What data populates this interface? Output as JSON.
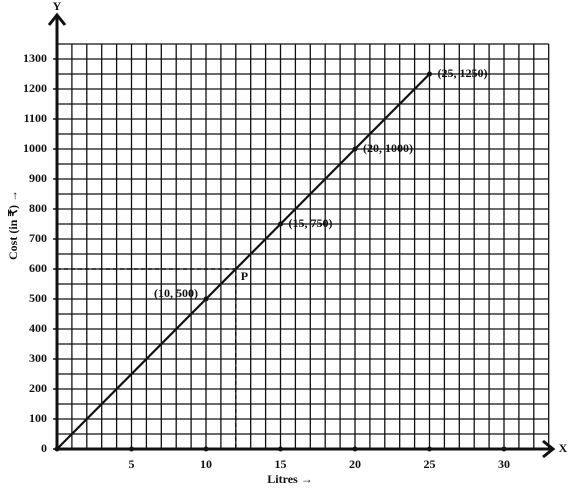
{
  "chart_data": {
    "type": "line",
    "x_label": "Litres →",
    "y_label": "Cost (in ₹) →",
    "x_axis_name": "X",
    "y_axis_name": "Y",
    "x": [
      0,
      10,
      15,
      20,
      25
    ],
    "values": [
      0,
      500,
      750,
      1000,
      1250
    ],
    "value_labels": [
      null,
      "(10, 500)",
      "(15, 750)",
      "(20, 1000)",
      "(25, 1250)"
    ],
    "color": "#111111",
    "xlim": [
      0,
      33
    ],
    "ylim": [
      0,
      1350
    ],
    "xticks": [
      5,
      10,
      15,
      20,
      25,
      30
    ],
    "yticks": [
      0,
      100,
      200,
      300,
      400,
      500,
      600,
      700,
      800,
      900,
      1000,
      1100,
      1200,
      1300
    ],
    "grid": true,
    "grid_step": {
      "x": 1,
      "y": 50
    },
    "annotations": [
      {
        "x": 12,
        "y": 600,
        "label": "P"
      }
    ]
  }
}
